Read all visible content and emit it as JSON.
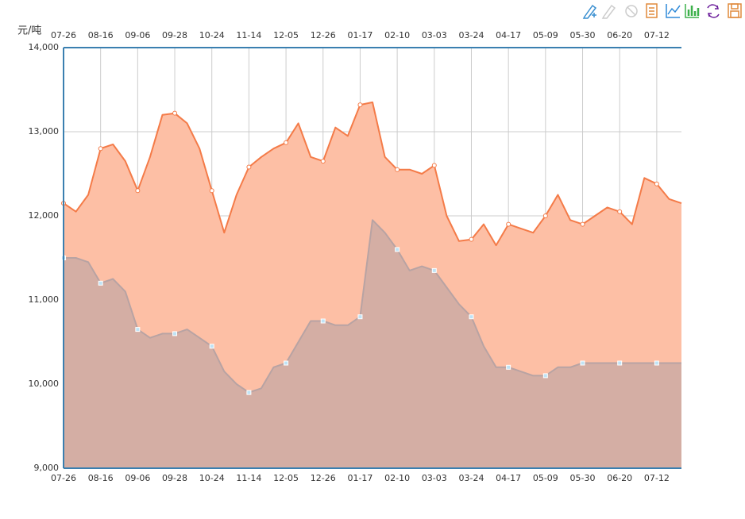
{
  "chart_data": {
    "type": "area",
    "y_label": "元/吨",
    "categories": [
      "07-26",
      null,
      null,
      "08-16",
      null,
      null,
      "09-06",
      null,
      null,
      "09-28",
      null,
      null,
      "10-24",
      null,
      null,
      "11-14",
      null,
      null,
      "12-05",
      null,
      null,
      "12-26",
      null,
      null,
      "01-17",
      null,
      null,
      "02-10",
      null,
      null,
      "03-03",
      null,
      null,
      "03-24",
      null,
      null,
      "04-17",
      null,
      null,
      "05-09",
      null,
      null,
      "05-30",
      null,
      null,
      "06-20",
      null,
      null,
      "07-12",
      null,
      null
    ],
    "series": [
      {
        "color": "#f47b48",
        "fill": "#fdbfa5",
        "values": [
          12150,
          12050,
          12250,
          12800,
          12850,
          12650,
          12300,
          12700,
          13200,
          13220,
          13100,
          12800,
          12300,
          11800,
          12250,
          12580,
          12700,
          12800,
          12870,
          13100,
          12700,
          12650,
          13050,
          12950,
          13320,
          13350,
          12700,
          12550,
          12550,
          12500,
          12600,
          12000,
          11700,
          11720,
          11900,
          11650,
          11900,
          11850,
          11800,
          12000,
          12250,
          11950,
          11900,
          12000,
          12100,
          12050,
          11900,
          12450,
          12380,
          12200,
          12150
        ]
      },
      {
        "color": "#b8a3a3",
        "fill": "#b9a4a4",
        "values": [
          11500,
          11500,
          11450,
          11200,
          11250,
          11100,
          10650,
          10550,
          10600,
          10600,
          10650,
          10550,
          10450,
          10150,
          10000,
          9900,
          9950,
          10200,
          10250,
          10500,
          10750,
          10750,
          10700,
          10700,
          10800,
          11950,
          11800,
          11600,
          11350,
          11400,
          11350,
          11150,
          10950,
          10800,
          10450,
          10200,
          10200,
          10150,
          10100,
          10100,
          10200,
          10200,
          10250,
          10250,
          10250,
          10250,
          10250,
          10250,
          10250,
          10250,
          10250
        ]
      }
    ],
    "ylim": [
      9000,
      14000
    ],
    "yticks": [
      {
        "value": 9000,
        "label": "9,000"
      },
      {
        "value": 10000,
        "label": "10,000"
      },
      {
        "value": 11000,
        "label": "11,000"
      },
      {
        "value": 12000,
        "label": "12,000"
      },
      {
        "value": 13000,
        "label": "13,000"
      },
      {
        "value": 14000,
        "label": "14,000"
      }
    ],
    "grid": true
  }
}
